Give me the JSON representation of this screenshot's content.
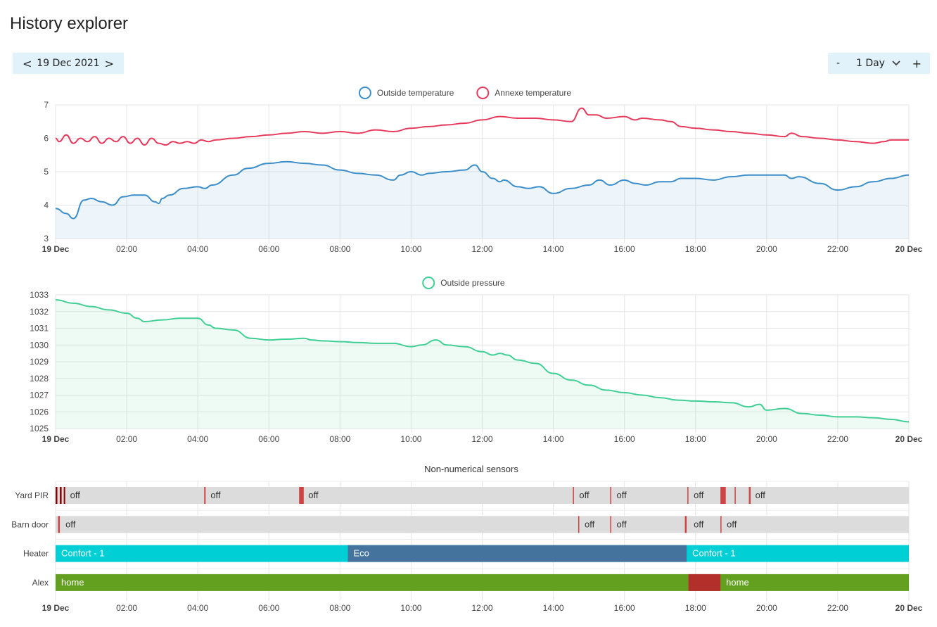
{
  "page": {
    "title": "History explorer"
  },
  "date_nav": {
    "prev": "<",
    "date": "19 Dec 2021",
    "next": ">"
  },
  "range": {
    "minus": "-",
    "value": "1 Day",
    "plus": "+"
  },
  "x_ticks": [
    "19 Dec",
    "02:00",
    "04:00",
    "06:00",
    "08:00",
    "10:00",
    "12:00",
    "14:00",
    "16:00",
    "18:00",
    "20:00",
    "22:00",
    "20 Dec"
  ],
  "chart_data": [
    {
      "type": "line",
      "yticks": [
        "7",
        "6",
        "5",
        "4",
        "3"
      ],
      "ylim": [
        3,
        7
      ],
      "xlim": [
        0,
        24
      ],
      "series": [
        {
          "name": "Outside temperature",
          "color": "#3b8ec9",
          "fill": true,
          "x": [
            0,
            0.3,
            0.5,
            0.8,
            1.0,
            1.3,
            1.6,
            1.9,
            2.2,
            2.5,
            2.8,
            2.9,
            3.0,
            3.2,
            3.6,
            4.0,
            4.2,
            4.4,
            5.0,
            5.4,
            6.0,
            6.5,
            7.0,
            7.5,
            8.0,
            8.5,
            9.0,
            9.5,
            9.7,
            10.0,
            10.3,
            10.5,
            11.0,
            11.5,
            11.8,
            12.0,
            12.3,
            12.5,
            12.6,
            13.0,
            13.3,
            13.6,
            14.0,
            14.5,
            15.0,
            15.3,
            15.6,
            16.0,
            16.3,
            16.6,
            17.0,
            17.3,
            17.6,
            18.0,
            18.5,
            19.0,
            19.5,
            20.0,
            20.5,
            20.7,
            20.9,
            21.5,
            22.0,
            22.5,
            23.0,
            23.5,
            24.0
          ],
          "y": [
            3.9,
            3.75,
            3.6,
            4.15,
            4.2,
            4.1,
            4.0,
            4.25,
            4.3,
            4.3,
            4.1,
            4.05,
            4.2,
            4.3,
            4.5,
            4.55,
            4.5,
            4.6,
            4.9,
            5.1,
            5.25,
            5.3,
            5.25,
            5.2,
            5.05,
            4.95,
            4.9,
            4.75,
            4.9,
            5.0,
            4.9,
            4.95,
            5.0,
            5.05,
            5.2,
            5.0,
            4.8,
            4.7,
            4.75,
            4.55,
            4.5,
            4.55,
            4.35,
            4.5,
            4.6,
            4.75,
            4.6,
            4.75,
            4.65,
            4.6,
            4.7,
            4.7,
            4.8,
            4.8,
            4.75,
            4.85,
            4.9,
            4.9,
            4.9,
            4.8,
            4.85,
            4.65,
            4.45,
            4.55,
            4.7,
            4.8,
            4.9
          ]
        },
        {
          "name": "Annexe temperature",
          "color": "#e63a5c",
          "fill": false,
          "x": [
            0,
            0.1,
            0.3,
            0.5,
            0.7,
            0.9,
            1.1,
            1.3,
            1.5,
            1.7,
            1.9,
            2.1,
            2.3,
            2.5,
            2.7,
            2.9,
            3.1,
            3.3,
            3.5,
            3.7,
            3.9,
            4.1,
            4.3,
            4.5,
            5.0,
            5.5,
            6.0,
            6.5,
            7.0,
            7.5,
            8.0,
            8.5,
            9.0,
            9.5,
            10.0,
            10.5,
            11.0,
            11.5,
            12.0,
            12.5,
            13.0,
            13.5,
            14.0,
            14.5,
            14.8,
            15.0,
            15.2,
            15.5,
            16.0,
            16.3,
            16.5,
            17.0,
            17.3,
            17.6,
            18.0,
            18.5,
            19.0,
            19.5,
            20.0,
            20.5,
            20.7,
            21.0,
            21.5,
            22.0,
            22.5,
            23.0,
            23.3,
            23.5,
            24.0
          ],
          "y": [
            6.0,
            5.9,
            6.1,
            5.85,
            6.0,
            5.9,
            6.05,
            5.85,
            6.0,
            5.9,
            6.05,
            5.85,
            6.0,
            5.8,
            6.0,
            5.85,
            5.8,
            5.9,
            5.85,
            5.9,
            5.85,
            5.95,
            5.9,
            5.95,
            6.0,
            6.05,
            6.1,
            6.15,
            6.2,
            6.15,
            6.2,
            6.15,
            6.25,
            6.2,
            6.3,
            6.35,
            6.4,
            6.45,
            6.55,
            6.65,
            6.6,
            6.6,
            6.55,
            6.5,
            6.9,
            6.7,
            6.7,
            6.6,
            6.65,
            6.55,
            6.6,
            6.55,
            6.5,
            6.35,
            6.3,
            6.25,
            6.2,
            6.15,
            6.1,
            6.05,
            6.15,
            6.05,
            6.0,
            5.95,
            5.9,
            5.85,
            5.9,
            5.95,
            5.95
          ]
        }
      ]
    },
    {
      "type": "line",
      "yticks": [
        "1033",
        "1032",
        "1031",
        "1030",
        "1029",
        "1028",
        "1027",
        "1026",
        "1025"
      ],
      "ylim": [
        1025,
        1033
      ],
      "xlim": [
        0,
        24
      ],
      "series": [
        {
          "name": "Outside pressure",
          "color": "#3fcf94",
          "fill": true,
          "x": [
            0,
            0.5,
            1.0,
            1.5,
            2.0,
            2.3,
            2.5,
            3.0,
            3.5,
            4.0,
            4.3,
            4.5,
            5.0,
            5.5,
            6.0,
            6.5,
            7.0,
            7.2,
            7.5,
            8.0,
            8.5,
            9.0,
            9.5,
            10.0,
            10.3,
            10.7,
            11.0,
            11.5,
            12.0,
            12.3,
            12.5,
            12.7,
            13.0,
            13.5,
            14.0,
            14.5,
            15.0,
            15.5,
            16.0,
            16.5,
            17.0,
            17.5,
            18.0,
            18.5,
            19.0,
            19.5,
            19.8,
            20.0,
            20.5,
            21.0,
            21.5,
            22.0,
            22.5,
            23.0,
            23.5,
            24.0
          ],
          "y": [
            1032.7,
            1032.5,
            1032.3,
            1032.1,
            1031.9,
            1031.6,
            1031.4,
            1031.5,
            1031.6,
            1031.6,
            1031.2,
            1031.0,
            1030.9,
            1030.4,
            1030.3,
            1030.35,
            1030.4,
            1030.3,
            1030.25,
            1030.2,
            1030.15,
            1030.1,
            1030.1,
            1029.9,
            1030.0,
            1030.3,
            1030.0,
            1029.9,
            1029.6,
            1029.4,
            1029.5,
            1029.4,
            1029.1,
            1028.9,
            1028.3,
            1027.9,
            1027.6,
            1027.3,
            1027.15,
            1027.0,
            1026.85,
            1026.7,
            1026.65,
            1026.6,
            1026.55,
            1026.3,
            1026.45,
            1026.1,
            1026.2,
            1025.9,
            1025.8,
            1025.7,
            1025.7,
            1025.65,
            1025.55,
            1025.4
          ]
        }
      ]
    }
  ],
  "timeline": {
    "title": "Non-numerical sensors",
    "rows": [
      {
        "label": "Yard PIR",
        "base": "#dcdcdc",
        "segments": [
          {
            "start": 0.0,
            "end": 0.05,
            "color": "#8b0000"
          },
          {
            "start": 0.12,
            "end": 0.17,
            "color": "#8b0000"
          },
          {
            "start": 0.23,
            "end": 0.27,
            "color": "#8b0000"
          },
          {
            "start": 4.18,
            "end": 4.22,
            "color": "#c44"
          },
          {
            "start": 6.85,
            "end": 6.98,
            "color": "#c44"
          },
          {
            "start": 14.55,
            "end": 14.58,
            "color": "#c44"
          },
          {
            "start": 15.6,
            "end": 15.63,
            "color": "#c44"
          },
          {
            "start": 17.77,
            "end": 17.8,
            "color": "#c44"
          },
          {
            "start": 18.7,
            "end": 18.85,
            "color": "#c44"
          },
          {
            "start": 19.1,
            "end": 19.13,
            "color": "#c44"
          },
          {
            "start": 19.5,
            "end": 19.55,
            "color": "#c44"
          }
        ],
        "labels": [
          {
            "at": 0.33,
            "text": "off"
          },
          {
            "at": 4.28,
            "text": "off"
          },
          {
            "at": 7.03,
            "text": "off"
          },
          {
            "at": 14.65,
            "text": "off"
          },
          {
            "at": 15.7,
            "text": "off"
          },
          {
            "at": 17.87,
            "text": "off"
          },
          {
            "at": 19.6,
            "text": "off"
          }
        ]
      },
      {
        "label": "Barn door",
        "base": "#dcdcdc",
        "segments": [
          {
            "start": 0.07,
            "end": 0.12,
            "color": "#c44"
          },
          {
            "start": 14.7,
            "end": 14.73,
            "color": "#c44"
          },
          {
            "start": 15.6,
            "end": 15.63,
            "color": "#c44"
          },
          {
            "start": 17.7,
            "end": 17.75,
            "color": "#c44"
          },
          {
            "start": 18.7,
            "end": 18.73,
            "color": "#c44"
          }
        ],
        "labels": [
          {
            "at": 0.2,
            "text": "off"
          },
          {
            "at": 14.8,
            "text": "off"
          },
          {
            "at": 15.7,
            "text": "off"
          },
          {
            "at": 17.87,
            "text": "off"
          },
          {
            "at": 18.8,
            "text": "off"
          }
        ]
      },
      {
        "label": "Heater",
        "base": "#00d0d6",
        "segments": [
          {
            "start": 8.22,
            "end": 17.75,
            "color": "#44739e"
          }
        ],
        "labels": [
          {
            "at": 0.08,
            "text": "Confort - 1"
          },
          {
            "at": 8.3,
            "text": "Eco"
          },
          {
            "at": 17.83,
            "text": "Confort - 1"
          }
        ]
      },
      {
        "label": "Alex",
        "base": "#64a020",
        "segments": [
          {
            "start": 17.8,
            "end": 18.7,
            "color": "#b3302a"
          }
        ],
        "labels": [
          {
            "at": 0.08,
            "text": "home"
          },
          {
            "at": 18.78,
            "text": "home"
          }
        ]
      }
    ]
  }
}
